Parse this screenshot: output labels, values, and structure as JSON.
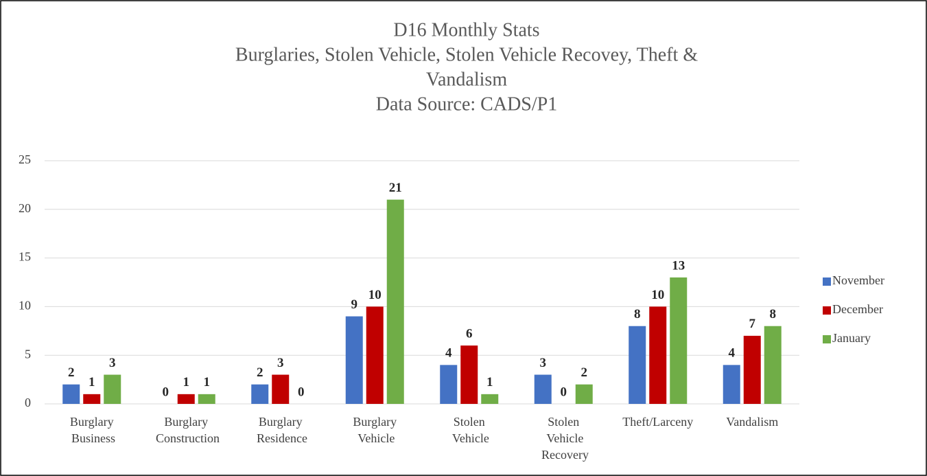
{
  "chart_data": {
    "type": "bar",
    "title": [
      "D16 Monthly Stats",
      "Burglaries, Stolen Vehicle, Stolen Vehicle Recovey, Theft &",
      "Vandalism",
      "Data Source: CADS/P1"
    ],
    "categories": [
      "Burglary Business",
      "Burglary Construction",
      "Burglary Residence",
      "Burglary Vehicle",
      "Stolen Vehicle",
      "Stolen Vehicle Recovery",
      "Theft/Larceny",
      "Vandalism"
    ],
    "series": [
      {
        "name": "November",
        "color": "#4472c4",
        "values": [
          2,
          0,
          2,
          9,
          4,
          3,
          8,
          4
        ]
      },
      {
        "name": "December",
        "color": "#c00000",
        "values": [
          1,
          1,
          3,
          10,
          6,
          0,
          10,
          7
        ]
      },
      {
        "name": "January",
        "color": "#70ad47",
        "values": [
          3,
          1,
          0,
          21,
          1,
          2,
          13,
          8
        ]
      }
    ],
    "ylim": [
      0,
      25
    ],
    "yticks": [
      0,
      5,
      10,
      15,
      20,
      25
    ],
    "grid": true,
    "legend": "right",
    "data_labels": true
  }
}
